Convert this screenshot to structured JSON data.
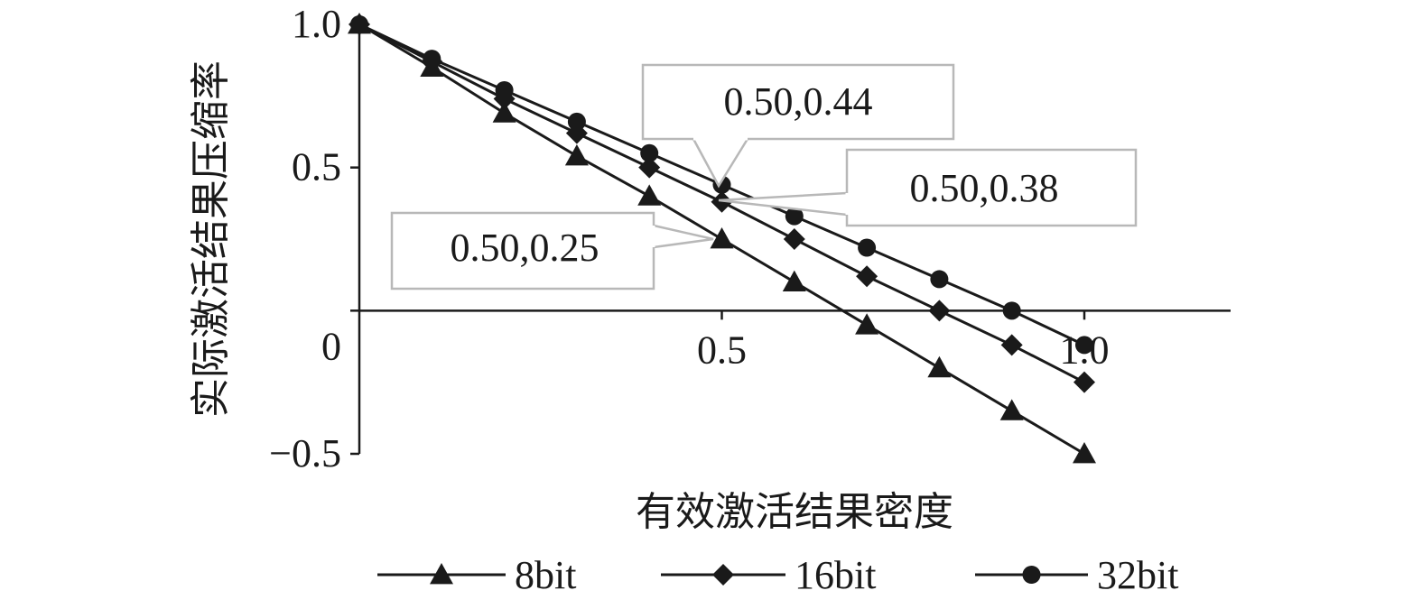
{
  "chart_data": {
    "type": "line",
    "title": "",
    "xlabel": "有效激活结果密度",
    "ylabel": "实际激活结果压缩率",
    "xlim": [
      0,
      1.2
    ],
    "ylim": [
      -0.5,
      1.0
    ],
    "x_ticks": [
      {
        "value": 0.5,
        "label": "0.5"
      },
      {
        "value": 1.0,
        "label": "1.0"
      }
    ],
    "y_ticks": [
      {
        "value": 1.0,
        "label": "1.0"
      },
      {
        "value": 0.5,
        "label": "0.5"
      },
      {
        "value": 0,
        "label": "0"
      },
      {
        "value": -0.5,
        "label": "−0.5"
      }
    ],
    "grid": false,
    "legend_position": "bottom",
    "x": [
      0,
      0.1,
      0.2,
      0.3,
      0.4,
      0.5,
      0.6,
      0.7,
      0.8,
      0.9,
      1.0
    ],
    "series": [
      {
        "name": "8bit",
        "marker": "triangle",
        "values": [
          1.0,
          0.85,
          0.69,
          0.54,
          0.4,
          0.25,
          0.1,
          -0.05,
          -0.2,
          -0.35,
          -0.5
        ]
      },
      {
        "name": "16bit",
        "marker": "diamond",
        "values": [
          1.0,
          0.87,
          0.74,
          0.62,
          0.5,
          0.38,
          0.25,
          0.12,
          0.0,
          -0.12,
          -0.25
        ]
      },
      {
        "name": "32bit",
        "marker": "circle",
        "values": [
          1.0,
          0.88,
          0.77,
          0.66,
          0.55,
          0.44,
          0.33,
          0.22,
          0.11,
          0.0,
          -0.12
        ]
      }
    ],
    "annotations": [
      {
        "text": "0.50,0.44",
        "x": 0.5,
        "y": 0.44
      },
      {
        "text": "0.50,0.38",
        "x": 0.5,
        "y": 0.38
      },
      {
        "text": "0.50,0.25",
        "x": 0.5,
        "y": 0.25
      }
    ]
  }
}
